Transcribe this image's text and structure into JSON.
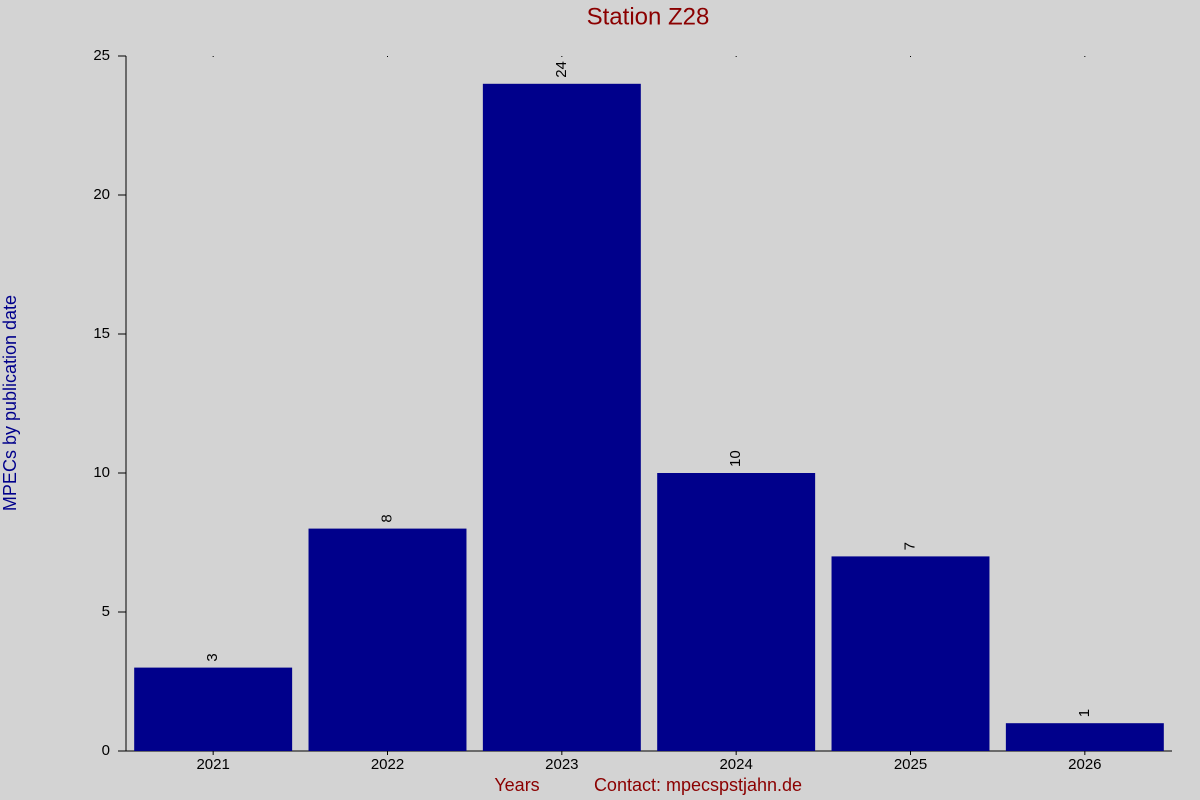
{
  "chart_data": {
    "type": "bar",
    "title": "Station Z28",
    "ylabel": "MPECs by publication date",
    "xlabel": "Years",
    "contact": "Contact: mpecspstjahn.de",
    "categories": [
      "2021",
      "2022",
      "2023",
      "2024",
      "2025",
      "2026"
    ],
    "values": [
      3,
      8,
      24,
      10,
      7,
      1
    ],
    "color": "#00008b",
    "ylim": [
      0,
      25
    ],
    "yticks": [
      0,
      5,
      10,
      15,
      20,
      25
    ],
    "grid": false
  }
}
